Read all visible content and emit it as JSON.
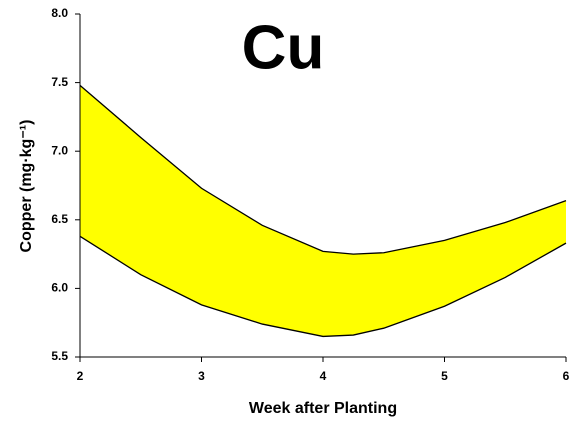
{
  "chart_data": {
    "type": "band",
    "title": "Cu",
    "xlabel": "Week after Planting",
    "ylabel": "Copper (mg·kg⁻¹)",
    "x": [
      2,
      2.5,
      3,
      3.5,
      4,
      4.25,
      4.5,
      5,
      5.5,
      6
    ],
    "series": [
      {
        "color": "#000000",
        "values": [
          7.48,
          7.1,
          6.73,
          6.46,
          6.27,
          6.25,
          6.26,
          6.35,
          6.48,
          6.64
        ]
      },
      {
        "color": "#000000",
        "values": [
          6.38,
          6.1,
          5.88,
          5.74,
          5.65,
          5.66,
          5.71,
          5.87,
          6.08,
          6.33
        ]
      }
    ],
    "fill": "#ffff00",
    "xlim": [
      2,
      6
    ],
    "xticks": [
      2,
      3,
      4,
      5,
      6
    ],
    "ylim": [
      5.5,
      8
    ],
    "yticks": [
      5.5,
      {
        "value": 6,
        "label": "6.0"
      },
      6.5,
      {
        "value": 7,
        "label": "7.0"
      },
      7.5,
      {
        "value": 8,
        "label": "8.0"
      }
    ]
  }
}
